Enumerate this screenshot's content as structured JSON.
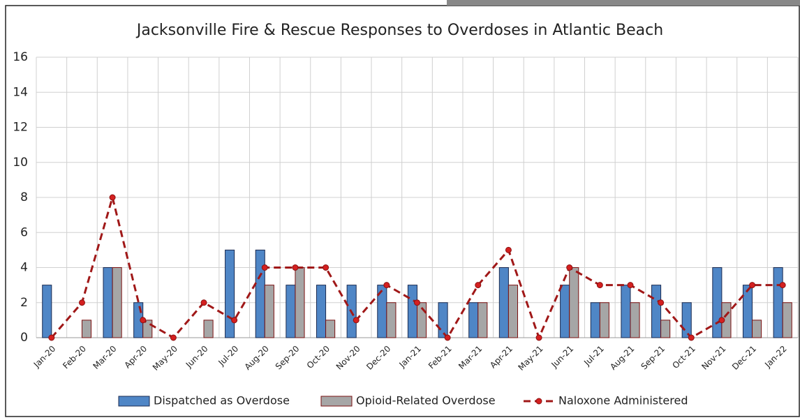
{
  "chart_data": {
    "type": "bar-line",
    "title": "Jacksonville Fire & Rescue Responses to Overdoses in Atlantic Beach",
    "categories": [
      "Jan-20",
      "Feb-20",
      "Mar-20",
      "Apr-20",
      "May-20",
      "Jun-20",
      "Jul-20",
      "Aug-20",
      "Sep-20",
      "Oct-20",
      "Nov-20",
      "Dec-20",
      "Jan-21",
      "Feb-21",
      "Mar-21",
      "Apr-21",
      "May-21",
      "Jun-21",
      "Jul-21",
      "Aug-21",
      "Sep-21",
      "Oct-21",
      "Nov-21",
      "Dec-21",
      "Jan-22"
    ],
    "series": [
      {
        "name": "Dispatched as Overdose",
        "type": "bar",
        "color": "#4f86c6",
        "values": [
          3,
          0,
          4,
          2,
          0,
          0,
          5,
          5,
          3,
          3,
          3,
          3,
          3,
          2,
          2,
          4,
          0,
          3,
          2,
          3,
          3,
          2,
          4,
          3,
          4
        ]
      },
      {
        "name": "Opioid-Related Overdose",
        "type": "bar",
        "color": "#a6a6a6",
        "values": [
          0,
          1,
          4,
          1,
          0,
          1,
          0,
          3,
          4,
          1,
          0,
          2,
          2,
          0,
          2,
          3,
          0,
          4,
          2,
          2,
          1,
          0,
          2,
          1,
          2
        ]
      },
      {
        "name": "Naloxone Administered",
        "type": "line",
        "color": "#a01818",
        "values": [
          0,
          2,
          8,
          1,
          0,
          2,
          1,
          4,
          4,
          4,
          1,
          3,
          2,
          0,
          3,
          5,
          0,
          4,
          3,
          3,
          2,
          0,
          1,
          3,
          3
        ]
      }
    ],
    "ylim": [
      0,
      16
    ],
    "yticks": [
      0,
      2,
      4,
      6,
      8,
      10,
      12,
      14,
      16
    ],
    "grid": true,
    "legend": "bottom"
  }
}
